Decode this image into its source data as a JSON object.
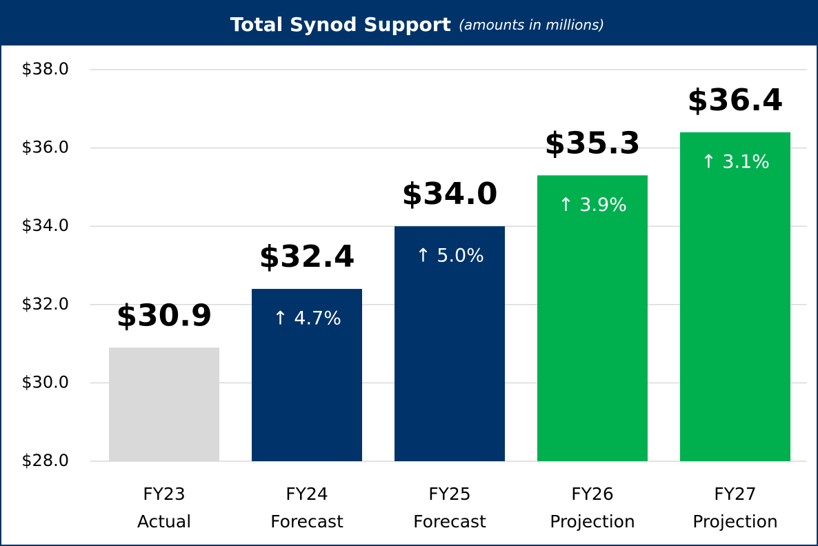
{
  "chart_data": {
    "type": "bar",
    "title": "Total Synod Support",
    "subtitle": "(amounts in millions)",
    "categories": [
      [
        "FY23",
        "Actual"
      ],
      [
        "FY24",
        "Forecast"
      ],
      [
        "FY25",
        "Forecast"
      ],
      [
        "FY26",
        "Projection"
      ],
      [
        "FY27",
        "Projection"
      ]
    ],
    "values": [
      30.9,
      32.4,
      34.0,
      35.3,
      36.4
    ],
    "value_labels": [
      "$30.9",
      "$32.4",
      "$34.0",
      "$35.3",
      "$36.4"
    ],
    "growth_labels": [
      null,
      "↑ 4.7%",
      "↑ 5.0%",
      "↑ 3.9%",
      "↑ 3.1%"
    ],
    "colors": [
      "#d9d9d9",
      "#00336a",
      "#00336a",
      "#00b04f",
      "#00b04f"
    ],
    "ylim": [
      28,
      38
    ],
    "yticks": [
      {
        "value": 28,
        "label": "$28.0"
      },
      {
        "value": 30,
        "label": "$30.0"
      },
      {
        "value": 32,
        "label": "$32.0"
      },
      {
        "value": 34,
        "label": "$34.0"
      },
      {
        "value": 36,
        "label": "$36.0"
      },
      {
        "value": 38,
        "label": "$38.0"
      }
    ],
    "grid": true
  }
}
